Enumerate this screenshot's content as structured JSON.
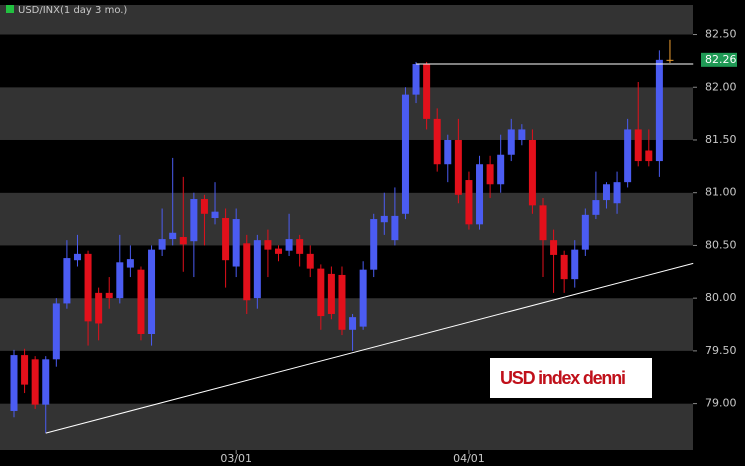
{
  "chart_data": {
    "type": "candlestick",
    "title": "USD/INX(1 day 3 mo.)",
    "categories": [
      null,
      null,
      null,
      null,
      null,
      null,
      null,
      null,
      null,
      null,
      null,
      null,
      null,
      null,
      null,
      null,
      null,
      null,
      null,
      null,
      null,
      "03/01",
      null,
      null,
      null,
      null,
      null,
      null,
      null,
      null,
      null,
      null,
      null,
      null,
      null,
      null,
      null,
      null,
      null,
      null,
      null,
      null,
      null,
      "04/01",
      null,
      null,
      null,
      null,
      null,
      null,
      null,
      null,
      null,
      null,
      null,
      null,
      null,
      null,
      null,
      null,
      null,
      null,
      null
    ],
    "open": [
      78.93,
      79.46,
      79.42,
      78.99,
      79.42,
      79.95,
      80.36,
      80.42,
      80.05,
      80.05,
      80.0,
      80.29,
      80.27,
      79.66,
      80.46,
      80.56,
      80.58,
      80.54,
      80.94,
      80.76,
      80.76,
      80.3,
      80.52,
      80.0,
      80.55,
      80.47,
      80.45,
      80.56,
      80.42,
      80.28,
      80.23,
      80.22,
      79.7,
      79.73,
      80.27,
      80.72,
      80.55,
      80.8,
      81.93,
      82.22,
      81.7,
      81.27,
      81.5,
      81.12,
      80.7,
      81.27,
      81.08,
      81.36,
      81.5,
      81.5,
      80.88,
      80.55,
      80.41,
      80.18,
      80.46,
      80.79,
      80.93,
      80.9,
      81.1,
      81.6,
      81.4,
      81.3,
      82.26
    ],
    "high": [
      79.51,
      79.52,
      79.45,
      79.45,
      80.0,
      80.55,
      80.6,
      80.45,
      80.1,
      80.2,
      80.6,
      80.5,
      80.3,
      80.5,
      80.85,
      81.33,
      81.15,
      81.0,
      80.98,
      81.1,
      80.85,
      80.85,
      80.6,
      80.6,
      80.65,
      80.5,
      80.8,
      80.6,
      80.5,
      80.32,
      80.3,
      80.3,
      79.85,
      80.35,
      80.8,
      81.0,
      81.05,
      82.0,
      82.24,
      82.24,
      81.8,
      81.55,
      81.7,
      81.2,
      81.35,
      81.35,
      81.55,
      81.7,
      81.65,
      81.6,
      80.95,
      80.65,
      80.45,
      80.55,
      80.85,
      81.2,
      81.1,
      81.2,
      81.7,
      82.05,
      81.6,
      82.35,
      82.45
    ],
    "low": [
      78.87,
      79.1,
      78.95,
      78.72,
      79.35,
      79.9,
      80.3,
      79.55,
      79.6,
      79.9,
      79.95,
      80.2,
      79.6,
      79.55,
      80.4,
      80.5,
      80.25,
      80.2,
      80.5,
      80.7,
      80.1,
      80.2,
      79.85,
      79.9,
      80.2,
      80.35,
      80.4,
      80.3,
      80.2,
      79.7,
      79.8,
      79.65,
      79.5,
      79.7,
      80.2,
      80.6,
      80.5,
      80.75,
      81.85,
      81.6,
      81.2,
      81.1,
      80.9,
      80.65,
      80.65,
      80.95,
      81.0,
      81.3,
      81.45,
      80.8,
      80.2,
      80.05,
      80.05,
      80.1,
      80.4,
      80.75,
      80.85,
      80.8,
      81.05,
      81.25,
      81.25,
      81.15,
      82.23
    ],
    "close": [
      79.46,
      79.18,
      78.99,
      79.42,
      79.95,
      80.38,
      80.42,
      79.78,
      79.76,
      80.0,
      80.34,
      80.37,
      79.66,
      80.46,
      80.56,
      80.62,
      80.51,
      80.94,
      80.8,
      80.82,
      80.36,
      80.75,
      79.98,
      80.55,
      80.46,
      80.42,
      80.56,
      80.42,
      80.28,
      79.83,
      79.85,
      79.7,
      79.82,
      80.27,
      80.75,
      80.78,
      80.78,
      81.93,
      82.22,
      81.7,
      81.27,
      81.5,
      80.98,
      80.7,
      81.27,
      81.08,
      81.36,
      81.6,
      81.6,
      80.88,
      80.55,
      80.41,
      80.18,
      80.46,
      80.79,
      80.93,
      81.08,
      81.1,
      81.6,
      81.3,
      81.3,
      82.26,
      82.26
    ],
    "up_color": "#4b5cf2",
    "down_color": "#e3101b",
    "last_color": "#f0a030",
    "ylim": [
      78.56,
      82.78
    ],
    "yticks": [
      {
        "value": 79.0,
        "label": "79.00"
      },
      {
        "value": 79.5,
        "label": "79.50"
      },
      {
        "value": 80.0,
        "label": "80.00"
      },
      {
        "value": 80.5,
        "label": "80.50"
      },
      {
        "value": 81.0,
        "label": "81.00"
      },
      {
        "value": 81.5,
        "label": "81.50"
      },
      {
        "value": 82.0,
        "label": "82.00"
      },
      {
        "value": 82.5,
        "label": "82.50"
      }
    ],
    "grid": "bands",
    "band_colors": [
      "#333333",
      "#000000"
    ],
    "last_price": 82.26,
    "last_price_color": "#1f9a55",
    "lines": [
      {
        "x": [
          3,
          64.2
        ],
        "y": [
          78.72,
          80.33
        ],
        "color": "#ffffff"
      },
      {
        "x": [
          38,
          64.2
        ],
        "y": [
          82.22,
          82.22
        ],
        "color": "#ffffff"
      }
    ],
    "annotation": "USD index denni"
  }
}
